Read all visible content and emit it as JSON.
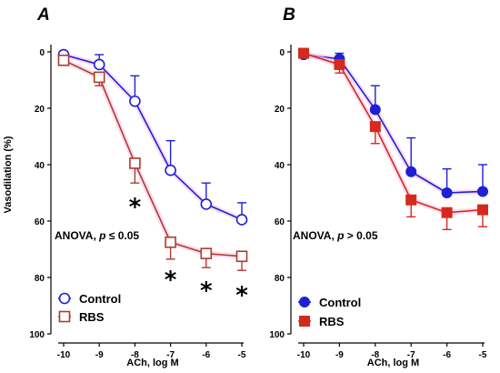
{
  "chart_data": [
    {
      "panel_label": "A",
      "type": "line",
      "x": [
        -10,
        -9,
        -8,
        -7,
        -6,
        -5
      ],
      "xlabel": "ACh, log M",
      "ylabel": "Vasodilation (%)",
      "ylim": [
        0,
        100
      ],
      "y_inverted": true,
      "yticks": [
        0,
        20,
        40,
        60,
        80,
        100
      ],
      "xticks": [
        -10,
        -9,
        -8,
        -7,
        -6,
        -5
      ],
      "annotation": {
        "prefix": "ANOVA, ",
        "italic": "p",
        "suffix": " ≤ 0.05"
      },
      "legend_position": "bottom-left",
      "series": [
        {
          "name": "Control",
          "marker": "open-circle",
          "color": "#1f1fd6",
          "values": [
            1,
            4.5,
            17.5,
            42,
            54,
            59.5
          ],
          "errors": [
            0,
            3.5,
            9,
            10.5,
            7.5,
            6
          ]
        },
        {
          "name": "RBS",
          "marker": "open-square",
          "color": "#b03a2e",
          "values": [
            3,
            9,
            39.5,
            67.5,
            71.5,
            72.5
          ],
          "errors": [
            1,
            3,
            7,
            6,
            5,
            5
          ]
        }
      ],
      "significance": [
        {
          "x": -8,
          "label": "*"
        },
        {
          "x": -7,
          "label": "*"
        },
        {
          "x": -6,
          "label": "*"
        },
        {
          "x": -5,
          "label": "*"
        }
      ]
    },
    {
      "panel_label": "B",
      "type": "line",
      "x": [
        -10,
        -9,
        -8,
        -7,
        -6,
        -5
      ],
      "xlabel": "ACh, log M",
      "ylabel": "",
      "ylim": [
        0,
        100
      ],
      "y_inverted": true,
      "yticks": [
        0,
        20,
        40,
        60,
        80,
        100
      ],
      "xticks": [
        -10,
        -9,
        -8,
        -7,
        -6,
        -5
      ],
      "annotation": {
        "prefix": "ANOVA, ",
        "italic": "p",
        "suffix": " > 0.05"
      },
      "legend_position": "bottom-left",
      "series": [
        {
          "name": "Control",
          "marker": "filled-circle",
          "color": "#1f1fd6",
          "values": [
            1,
            2.5,
            20.5,
            42.5,
            50,
            49.5
          ],
          "errors": [
            0,
            2,
            8.5,
            12,
            8.5,
            9.5
          ]
        },
        {
          "name": "RBS",
          "marker": "filled-square",
          "color": "#d42a1e",
          "values": [
            0.5,
            4.5,
            26.5,
            52.5,
            57,
            56
          ],
          "errors": [
            1,
            3,
            6,
            6,
            6,
            6
          ]
        }
      ],
      "significance": []
    }
  ]
}
